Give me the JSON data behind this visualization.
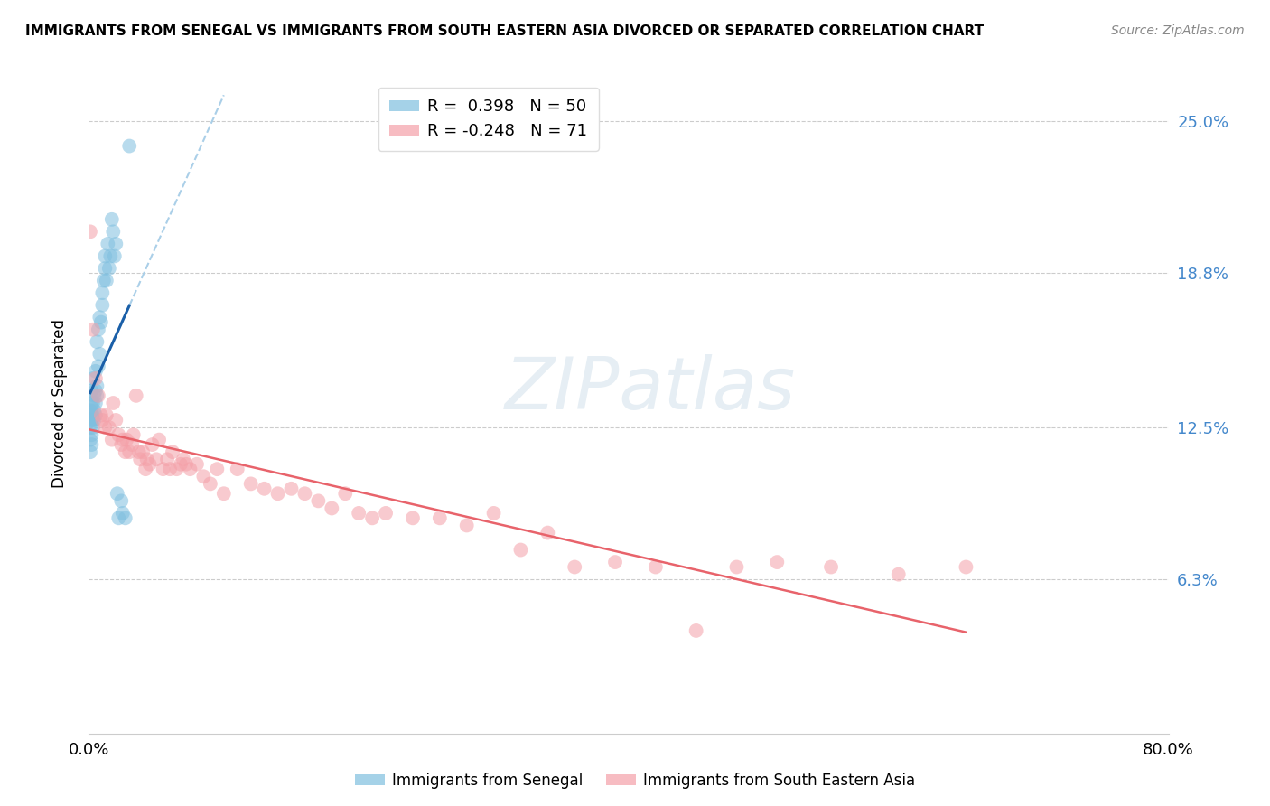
{
  "title": "IMMIGRANTS FROM SENEGAL VS IMMIGRANTS FROM SOUTH EASTERN ASIA DIVORCED OR SEPARATED CORRELATION CHART",
  "source": "Source: ZipAtlas.com",
  "ylabel": "Divorced or Separated",
  "ytick_labels": [
    "25.0%",
    "18.8%",
    "12.5%",
    "6.3%"
  ],
  "ytick_values": [
    0.25,
    0.188,
    0.125,
    0.063
  ],
  "xlim": [
    0.0,
    0.8
  ],
  "ylim": [
    0.0,
    0.27
  ],
  "blue_color": "#7fbfdf",
  "pink_color": "#f4a0a8",
  "blue_line_color": "#1a5fa8",
  "pink_line_color": "#e8636b",
  "blue_dash_color": "#aacfe8",
  "watermark_text": "ZIPatlas",
  "legend1_label": "R =  0.398   N = 50",
  "legend2_label": "R = -0.248   N = 71",
  "bottom_legend1": "Immigrants from Senegal",
  "bottom_legend2": "Immigrants from South Eastern Asia",
  "senegal_x": [
    0.001,
    0.001,
    0.001,
    0.001,
    0.001,
    0.002,
    0.002,
    0.002,
    0.002,
    0.002,
    0.002,
    0.003,
    0.003,
    0.003,
    0.003,
    0.003,
    0.004,
    0.004,
    0.004,
    0.005,
    0.005,
    0.005,
    0.005,
    0.006,
    0.006,
    0.006,
    0.007,
    0.007,
    0.008,
    0.008,
    0.009,
    0.01,
    0.01,
    0.011,
    0.012,
    0.012,
    0.013,
    0.014,
    0.015,
    0.016,
    0.017,
    0.018,
    0.019,
    0.02,
    0.021,
    0.022,
    0.024,
    0.025,
    0.027,
    0.03
  ],
  "senegal_y": [
    0.12,
    0.125,
    0.128,
    0.132,
    0.115,
    0.118,
    0.122,
    0.128,
    0.13,
    0.135,
    0.14,
    0.125,
    0.128,
    0.13,
    0.135,
    0.145,
    0.128,
    0.132,
    0.138,
    0.13,
    0.135,
    0.14,
    0.148,
    0.138,
    0.142,
    0.16,
    0.15,
    0.165,
    0.155,
    0.17,
    0.168,
    0.175,
    0.18,
    0.185,
    0.19,
    0.195,
    0.185,
    0.2,
    0.19,
    0.195,
    0.21,
    0.205,
    0.195,
    0.2,
    0.098,
    0.088,
    0.095,
    0.09,
    0.088,
    0.24
  ],
  "sea_x": [
    0.001,
    0.003,
    0.005,
    0.007,
    0.009,
    0.01,
    0.012,
    0.013,
    0.015,
    0.017,
    0.018,
    0.02,
    0.022,
    0.024,
    0.025,
    0.027,
    0.028,
    0.03,
    0.032,
    0.033,
    0.035,
    0.037,
    0.038,
    0.04,
    0.042,
    0.043,
    0.045,
    0.047,
    0.05,
    0.052,
    0.055,
    0.058,
    0.06,
    0.062,
    0.065,
    0.068,
    0.07,
    0.072,
    0.075,
    0.08,
    0.085,
    0.09,
    0.095,
    0.1,
    0.11,
    0.12,
    0.13,
    0.14,
    0.15,
    0.16,
    0.17,
    0.18,
    0.19,
    0.2,
    0.21,
    0.22,
    0.24,
    0.26,
    0.28,
    0.3,
    0.32,
    0.34,
    0.36,
    0.39,
    0.42,
    0.45,
    0.48,
    0.51,
    0.55,
    0.6,
    0.65
  ],
  "sea_y": [
    0.205,
    0.165,
    0.145,
    0.138,
    0.13,
    0.128,
    0.125,
    0.13,
    0.125,
    0.12,
    0.135,
    0.128,
    0.122,
    0.118,
    0.12,
    0.115,
    0.12,
    0.115,
    0.118,
    0.122,
    0.138,
    0.115,
    0.112,
    0.115,
    0.108,
    0.112,
    0.11,
    0.118,
    0.112,
    0.12,
    0.108,
    0.112,
    0.108,
    0.115,
    0.108,
    0.11,
    0.112,
    0.11,
    0.108,
    0.11,
    0.105,
    0.102,
    0.108,
    0.098,
    0.108,
    0.102,
    0.1,
    0.098,
    0.1,
    0.098,
    0.095,
    0.092,
    0.098,
    0.09,
    0.088,
    0.09,
    0.088,
    0.088,
    0.085,
    0.09,
    0.075,
    0.082,
    0.068,
    0.07,
    0.068,
    0.042,
    0.068,
    0.07,
    0.068,
    0.065,
    0.068
  ]
}
